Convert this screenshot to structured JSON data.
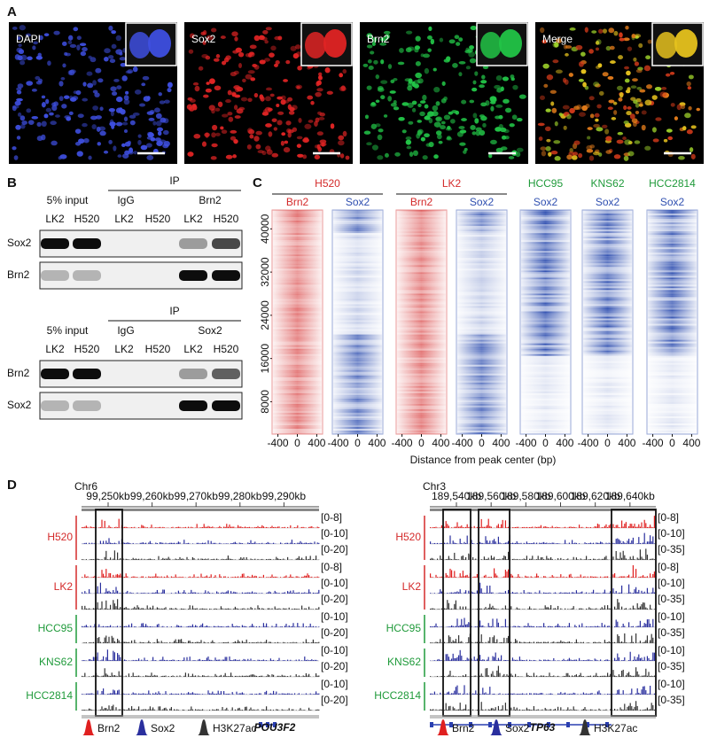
{
  "panels": {
    "A": {
      "label": "A",
      "images": [
        {
          "label": "DAPI",
          "color": "#3e4fe0"
        },
        {
          "label": "Sox2",
          "color": "#e02424"
        },
        {
          "label": "Brn2",
          "color": "#22c447"
        },
        {
          "label": "Merge",
          "color": "#e6c21e"
        }
      ]
    },
    "B": {
      "label": "B",
      "blots": [
        {
          "header": "IP",
          "groups": [
            "5% input",
            "IgG",
            "Brn2"
          ],
          "lanes": [
            "LK2",
            "H520",
            "LK2",
            "H520",
            "LK2",
            "H520"
          ],
          "rows": [
            "Sox2",
            "Brn2"
          ]
        },
        {
          "header": "IP",
          "groups": [
            "5% input",
            "IgG",
            "Sox2"
          ],
          "lanes": [
            "LK2",
            "H520",
            "LK2",
            "H520",
            "LK2",
            "H520"
          ],
          "rows": [
            "Brn2",
            "Sox2"
          ]
        }
      ]
    },
    "C": {
      "label": "C",
      "groups": [
        {
          "name": "H520",
          "color": "#d42a2a",
          "tracks": [
            {
              "name": "Brn2",
              "color": "#d42a2a"
            },
            {
              "name": "Sox2",
              "color": "#2f4fb0"
            }
          ]
        },
        {
          "name": "LK2",
          "color": "#d42a2a",
          "tracks": [
            {
              "name": "Brn2",
              "color": "#d42a2a"
            },
            {
              "name": "Sox2",
              "color": "#2f4fb0"
            }
          ]
        },
        {
          "name": "HCC95",
          "color": "#1f9a3a",
          "tracks": [
            {
              "name": "Sox2",
              "color": "#2f4fb0"
            }
          ]
        },
        {
          "name": "KNS62",
          "color": "#1f9a3a",
          "tracks": [
            {
              "name": "Sox2",
              "color": "#2f4fb0"
            }
          ]
        },
        {
          "name": "HCC2814",
          "color": "#1f9a3a",
          "tracks": [
            {
              "name": "Sox2",
              "color": "#2f4fb0"
            }
          ]
        }
      ],
      "ylim": [
        2000,
        43500
      ],
      "yticks": [
        8000,
        16000,
        24000,
        32000,
        40000
      ],
      "xlim": [
        -520,
        520
      ],
      "xticks": [
        -400,
        0,
        400
      ],
      "xlabel": "Distance from peak center (bp)"
    },
    "D": {
      "label": "D",
      "legend": [
        {
          "name": "Brn2",
          "color": "#e02020"
        },
        {
          "name": "Sox2",
          "color": "#2a2f9e"
        },
        {
          "name": "H3K27ac",
          "color": "#333333"
        }
      ],
      "browsers": [
        {
          "chrom": "Chr6",
          "ticks": [
            "99,250kb",
            "99,260kb",
            "99,270kb",
            "99,280kb",
            "99,290kb"
          ],
          "gene": "POU3F2",
          "samples": [
            {
              "name": "H520",
              "color": "#d42a2a",
              "ranges": [
                "[0-8]",
                "[0-10]",
                "[0-20]"
              ]
            },
            {
              "name": "LK2",
              "color": "#d42a2a",
              "ranges": [
                "[0-8]",
                "[0-10]",
                "[0-20]"
              ]
            },
            {
              "name": "HCC95",
              "color": "#1f9a3a",
              "ranges": [
                "[0-10]",
                "[0-20]"
              ]
            },
            {
              "name": "KNS62",
              "color": "#1f9a3a",
              "ranges": [
                "[0-10]",
                "[0-20]"
              ]
            },
            {
              "name": "HCC2814",
              "color": "#1f9a3a",
              "ranges": [
                "[0-10]",
                "[0-20]"
              ]
            }
          ]
        },
        {
          "chrom": "Chr3",
          "ticks": [
            "189,540kb",
            "189,560kb",
            "189,580kb",
            "189,600kb",
            "189,620kb",
            "189,640kb"
          ],
          "gene": "TP63",
          "samples": [
            {
              "name": "H520",
              "color": "#d42a2a",
              "ranges": [
                "[0-8]",
                "[0-10]",
                "[0-35]"
              ]
            },
            {
              "name": "LK2",
              "color": "#d42a2a",
              "ranges": [
                "[0-8]",
                "[0-10]",
                "[0-35]"
              ]
            },
            {
              "name": "HCC95",
              "color": "#1f9a3a",
              "ranges": [
                "[0-10]",
                "[0-35]"
              ]
            },
            {
              "name": "KNS62",
              "color": "#1f9a3a",
              "ranges": [
                "[0-10]",
                "[0-35]"
              ]
            },
            {
              "name": "HCC2814",
              "color": "#1f9a3a",
              "ranges": [
                "[0-10]",
                "[0-35]"
              ]
            }
          ]
        }
      ]
    }
  }
}
